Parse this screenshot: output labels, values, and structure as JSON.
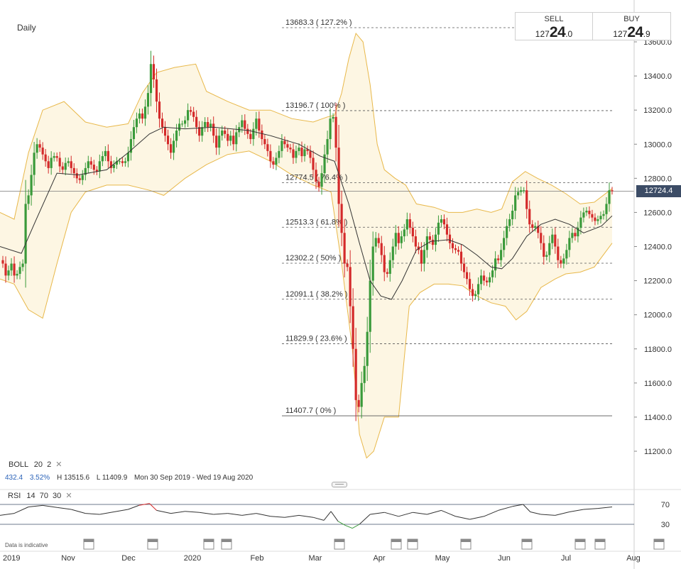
{
  "timeframe": "Daily",
  "quote": {
    "sell_label": "SELL",
    "sell_prefix": "127",
    "sell_big": "24",
    "sell_small": ".0",
    "buy_label": "BUY",
    "buy_prefix": "127",
    "buy_big": "24",
    "buy_small": ".9"
  },
  "current_price_label": "12724.4",
  "boll": {
    "name": "BOLL",
    "period": "20",
    "mult": "2"
  },
  "boll_stats": {
    "change": "432.4",
    "pct": "3.52%",
    "high": "H 13515.6",
    "low": "L 11409.9",
    "range": "Mon 30 Sep 2019 - Wed 19 Aug 2020"
  },
  "rsi": {
    "name": "RSI",
    "period": "14",
    "upper": "70",
    "lower": "30"
  },
  "disclaimer": "Data is indicative",
  "colors": {
    "up": "#3a9a3a",
    "down": "#d42a2a",
    "band": "#e8b84a",
    "band_fill": "#fdf6e3",
    "sma": "#333333",
    "current": "#3c4c66"
  },
  "chart_data": {
    "type": "candlestick",
    "y_axis": {
      "ylim": [
        11100,
        13700
      ],
      "ticks": [
        "11200.0",
        "11400.0",
        "11600.0",
        "11800.0",
        "12000.0",
        "12200.0",
        "12400.0",
        "12600.0",
        "12800.0",
        "13000.0",
        "13200.0",
        "13400.0",
        "13600.0"
      ]
    },
    "x_axis": {
      "labels": [
        "2019",
        "Nov",
        "Dec",
        "2020",
        "Feb",
        "Mar",
        "Apr",
        "May",
        "Jun",
        "Jul",
        "Aug"
      ]
    },
    "fib_levels": [
      {
        "value": 13683.3,
        "label": "13683.3 ( 127.2% )"
      },
      {
        "value": 13196.7,
        "label": "13196.7 ( 100% )"
      },
      {
        "value": 12774.5,
        "label": "12774.5 ( 76.4% )"
      },
      {
        "value": 12513.3,
        "label": "12513.3 ( 61.8% )"
      },
      {
        "value": 12302.2,
        "label": "12302.2 ( 50% )"
      },
      {
        "value": 12091.1,
        "label": "12091.1 ( 38.2% )"
      },
      {
        "value": 11829.9,
        "label": "11829.9 ( 23.6% )"
      },
      {
        "value": 11407.7,
        "label": "11407.7 ( 0% )"
      }
    ],
    "current_price": 12724.4,
    "close_points": [
      [
        0,
        12320
      ],
      [
        4,
        12300
      ],
      [
        8,
        12230
      ],
      [
        12,
        12260
      ],
      [
        16,
        12300
      ],
      [
        20,
        12230
      ],
      [
        24,
        12240
      ],
      [
        28,
        12280
      ],
      [
        32,
        12300
      ],
      [
        36,
        12650
      ],
      [
        40,
        12700
      ],
      [
        44,
        12820
      ],
      [
        48,
        12950
      ],
      [
        52,
        13000
      ],
      [
        56,
        12980
      ],
      [
        60,
        12940
      ],
      [
        64,
        12900
      ],
      [
        68,
        12860
      ],
      [
        72,
        12920
      ],
      [
        76,
        12930
      ],
      [
        80,
        12920
      ],
      [
        84,
        12870
      ],
      [
        88,
        12850
      ],
      [
        92,
        12890
      ],
      [
        96,
        12900
      ],
      [
        100,
        12860
      ],
      [
        104,
        12830
      ],
      [
        108,
        12800
      ],
      [
        112,
        12790
      ],
      [
        116,
        12820
      ],
      [
        120,
        12860
      ],
      [
        124,
        12900
      ],
      [
        128,
        12880
      ],
      [
        132,
        12850
      ],
      [
        136,
        12840
      ],
      [
        140,
        12900
      ],
      [
        144,
        12930
      ],
      [
        148,
        12960
      ],
      [
        152,
        12900
      ],
      [
        156,
        12860
      ],
      [
        160,
        12880
      ],
      [
        164,
        12900
      ],
      [
        168,
        12900
      ],
      [
        172,
        12890
      ],
      [
        176,
        12900
      ],
      [
        180,
        12950
      ],
      [
        184,
        13030
      ],
      [
        188,
        13100
      ],
      [
        192,
        13150
      ],
      [
        196,
        13180
      ],
      [
        200,
        13150
      ],
      [
        204,
        13220
      ],
      [
        208,
        13300
      ],
      [
        212,
        13470
      ],
      [
        216,
        13380
      ],
      [
        220,
        13250
      ],
      [
        224,
        13150
      ],
      [
        228,
        13100
      ],
      [
        232,
        13050
      ],
      [
        236,
        13000
      ],
      [
        240,
        12950
      ],
      [
        244,
        13020
      ],
      [
        248,
        13080
      ],
      [
        252,
        13120
      ],
      [
        256,
        13120
      ],
      [
        260,
        13140
      ],
      [
        264,
        13200
      ],
      [
        268,
        13190
      ],
      [
        272,
        13160
      ],
      [
        276,
        13100
      ],
      [
        280,
        13050
      ],
      [
        284,
        13100
      ],
      [
        288,
        13130
      ],
      [
        292,
        13100
      ],
      [
        296,
        13120
      ],
      [
        300,
        13050
      ],
      [
        304,
        12980
      ],
      [
        308,
        13050
      ],
      [
        312,
        13080
      ],
      [
        316,
        13060
      ],
      [
        320,
        13020
      ],
      [
        324,
        13050
      ],
      [
        328,
        13000
      ],
      [
        332,
        13070
      ],
      [
        336,
        13100
      ],
      [
        340,
        13140
      ],
      [
        344,
        13090
      ],
      [
        348,
        13060
      ],
      [
        352,
        13030
      ],
      [
        356,
        13090
      ],
      [
        360,
        13150
      ],
      [
        364,
        13080
      ],
      [
        368,
        13030
      ],
      [
        372,
        13000
      ],
      [
        376,
        12960
      ],
      [
        380,
        12900
      ],
      [
        384,
        12880
      ],
      [
        388,
        12920
      ],
      [
        392,
        12960
      ],
      [
        396,
        13020
      ],
      [
        400,
        13000
      ],
      [
        404,
        12980
      ],
      [
        408,
        12970
      ],
      [
        412,
        12920
      ],
      [
        416,
        12960
      ],
      [
        420,
        12980
      ],
      [
        424,
        12930
      ],
      [
        428,
        12970
      ],
      [
        432,
        12960
      ],
      [
        436,
        12920
      ],
      [
        440,
        12850
      ],
      [
        444,
        12780
      ],
      [
        448,
        12750
      ],
      [
        452,
        12830
      ],
      [
        456,
        12940
      ],
      [
        460,
        13030
      ],
      [
        464,
        13150
      ],
      [
        468,
        13160
      ],
      [
        472,
        12980
      ],
      [
        476,
        12650
      ],
      [
        480,
        12480
      ],
      [
        484,
        12300
      ],
      [
        488,
        12280
      ],
      [
        492,
        12050
      ],
      [
        496,
        11800
      ],
      [
        500,
        11500
      ],
      [
        504,
        11460
      ],
      [
        508,
        11600
      ],
      [
        512,
        11700
      ],
      [
        516,
        11900
      ],
      [
        520,
        12200
      ],
      [
        524,
        12400
      ],
      [
        528,
        12450
      ],
      [
        532,
        12420
      ],
      [
        536,
        12350
      ],
      [
        540,
        12250
      ],
      [
        544,
        12240
      ],
      [
        548,
        12320
      ],
      [
        552,
        12400
      ],
      [
        556,
        12480
      ],
      [
        560,
        12420
      ],
      [
        564,
        12460
      ],
      [
        568,
        12500
      ],
      [
        572,
        12560
      ],
      [
        576,
        12510
      ],
      [
        580,
        12460
      ],
      [
        584,
        12400
      ],
      [
        588,
        12380
      ],
      [
        592,
        12300
      ],
      [
        596,
        12380
      ],
      [
        600,
        12460
      ],
      [
        604,
        12440
      ],
      [
        608,
        12410
      ],
      [
        612,
        12470
      ],
      [
        616,
        12540
      ],
      [
        620,
        12560
      ],
      [
        624,
        12530
      ],
      [
        628,
        12470
      ],
      [
        632,
        12420
      ],
      [
        636,
        12390
      ],
      [
        640,
        12380
      ],
      [
        644,
        12370
      ],
      [
        648,
        12300
      ],
      [
        652,
        12250
      ],
      [
        656,
        12210
      ],
      [
        660,
        12150
      ],
      [
        664,
        12110
      ],
      [
        668,
        12120
      ],
      [
        672,
        12180
      ],
      [
        676,
        12230
      ],
      [
        680,
        12200
      ],
      [
        684,
        12190
      ],
      [
        688,
        12220
      ],
      [
        692,
        12260
      ],
      [
        696,
        12330
      ],
      [
        700,
        12320
      ],
      [
        704,
        12380
      ],
      [
        708,
        12450
      ],
      [
        712,
        12520
      ],
      [
        716,
        12560
      ],
      [
        720,
        12610
      ],
      [
        724,
        12700
      ],
      [
        728,
        12720
      ],
      [
        732,
        12730
      ],
      [
        736,
        12730
      ],
      [
        740,
        12620
      ],
      [
        744,
        12530
      ],
      [
        748,
        12510
      ],
      [
        752,
        12520
      ],
      [
        756,
        12480
      ],
      [
        760,
        12420
      ],
      [
        764,
        12340
      ],
      [
        768,
        12350
      ],
      [
        772,
        12420
      ],
      [
        776,
        12470
      ],
      [
        780,
        12400
      ],
      [
        784,
        12320
      ],
      [
        788,
        12300
      ],
      [
        792,
        12330
      ],
      [
        796,
        12380
      ],
      [
        800,
        12450
      ],
      [
        804,
        12480
      ],
      [
        808,
        12460
      ],
      [
        812,
        12510
      ],
      [
        816,
        12570
      ],
      [
        820,
        12600
      ],
      [
        824,
        12610
      ],
      [
        828,
        12590
      ],
      [
        832,
        12570
      ],
      [
        836,
        12550
      ],
      [
        840,
        12560
      ],
      [
        844,
        12580
      ],
      [
        848,
        12590
      ],
      [
        852,
        12650
      ],
      [
        856,
        12730
      ],
      [
        860,
        12725
      ]
    ],
    "sma_points": [
      [
        0,
        12400
      ],
      [
        30,
        12360
      ],
      [
        50,
        12550
      ],
      [
        80,
        12830
      ],
      [
        110,
        12820
      ],
      [
        150,
        12850
      ],
      [
        180,
        12950
      ],
      [
        210,
        13060
      ],
      [
        230,
        13100
      ],
      [
        260,
        13090
      ],
      [
        300,
        13100
      ],
      [
        350,
        13080
      ],
      [
        380,
        13050
      ],
      [
        420,
        13000
      ],
      [
        450,
        12930
      ],
      [
        470,
        12900
      ],
      [
        490,
        12650
      ],
      [
        505,
        12420
      ],
      [
        520,
        12200
      ],
      [
        535,
        12110
      ],
      [
        550,
        12090
      ],
      [
        565,
        12200
      ],
      [
        585,
        12380
      ],
      [
        605,
        12430
      ],
      [
        630,
        12440
      ],
      [
        650,
        12410
      ],
      [
        670,
        12350
      ],
      [
        690,
        12280
      ],
      [
        705,
        12270
      ],
      [
        720,
        12330
      ],
      [
        740,
        12460
      ],
      [
        760,
        12530
      ],
      [
        780,
        12560
      ],
      [
        800,
        12530
      ],
      [
        820,
        12480
      ],
      [
        845,
        12520
      ],
      [
        860,
        12580
      ]
    ],
    "band_upper_points": [
      [
        0,
        12600
      ],
      [
        20,
        12560
      ],
      [
        40,
        12950
      ],
      [
        60,
        13200
      ],
      [
        90,
        13250
      ],
      [
        120,
        13130
      ],
      [
        150,
        13100
      ],
      [
        180,
        13120
      ],
      [
        200,
        13300
      ],
      [
        220,
        13420
      ],
      [
        245,
        13450
      ],
      [
        275,
        13470
      ],
      [
        290,
        13310
      ],
      [
        320,
        13250
      ],
      [
        350,
        13200
      ],
      [
        380,
        13200
      ],
      [
        410,
        13150
      ],
      [
        440,
        13130
      ],
      [
        460,
        13160
      ],
      [
        470,
        13170
      ],
      [
        480,
        13300
      ],
      [
        490,
        13500
      ],
      [
        500,
        13650
      ],
      [
        510,
        13600
      ],
      [
        520,
        13350
      ],
      [
        530,
        13000
      ],
      [
        540,
        12850
      ],
      [
        555,
        12800
      ],
      [
        570,
        12760
      ],
      [
        585,
        12650
      ],
      [
        610,
        12630
      ],
      [
        630,
        12600
      ],
      [
        650,
        12600
      ],
      [
        670,
        12620
      ],
      [
        690,
        12600
      ],
      [
        705,
        12620
      ],
      [
        720,
        12780
      ],
      [
        738,
        12840
      ],
      [
        755,
        12800
      ],
      [
        775,
        12760
      ],
      [
        795,
        12710
      ],
      [
        815,
        12650
      ],
      [
        835,
        12660
      ],
      [
        860,
        12740
      ]
    ],
    "band_lower_points": [
      [
        0,
        12210
      ],
      [
        20,
        12180
      ],
      [
        40,
        12030
      ],
      [
        60,
        11980
      ],
      [
        80,
        12300
      ],
      [
        100,
        12600
      ],
      [
        120,
        12720
      ],
      [
        150,
        12760
      ],
      [
        180,
        12760
      ],
      [
        210,
        12730
      ],
      [
        230,
        12700
      ],
      [
        260,
        12800
      ],
      [
        290,
        12880
      ],
      [
        320,
        12940
      ],
      [
        350,
        12960
      ],
      [
        380,
        12900
      ],
      [
        410,
        12820
      ],
      [
        440,
        12760
      ],
      [
        465,
        12720
      ],
      [
        480,
        12300
      ],
      [
        495,
        11800
      ],
      [
        505,
        11300
      ],
      [
        515,
        11160
      ],
      [
        525,
        11200
      ],
      [
        540,
        11400
      ],
      [
        560,
        11400
      ],
      [
        575,
        12050
      ],
      [
        590,
        12130
      ],
      [
        610,
        12180
      ],
      [
        630,
        12180
      ],
      [
        650,
        12170
      ],
      [
        670,
        12110
      ],
      [
        690,
        12070
      ],
      [
        710,
        12050
      ],
      [
        725,
        11970
      ],
      [
        740,
        12020
      ],
      [
        760,
        12160
      ],
      [
        780,
        12210
      ],
      [
        795,
        12240
      ],
      [
        815,
        12250
      ],
      [
        835,
        12280
      ],
      [
        860,
        12420
      ]
    ],
    "rsi_upper": 70,
    "rsi_lower": 30,
    "rsi_points": [
      [
        0,
        48
      ],
      [
        20,
        52
      ],
      [
        40,
        65
      ],
      [
        60,
        68
      ],
      [
        80,
        64
      ],
      [
        100,
        60
      ],
      [
        120,
        52
      ],
      [
        140,
        50
      ],
      [
        160,
        55
      ],
      [
        180,
        60
      ],
      [
        195,
        68
      ],
      [
        210,
        72
      ],
      [
        220,
        58
      ],
      [
        240,
        52
      ],
      [
        260,
        56
      ],
      [
        280,
        54
      ],
      [
        300,
        50
      ],
      [
        320,
        52
      ],
      [
        340,
        48
      ],
      [
        360,
        52
      ],
      [
        380,
        46
      ],
      [
        400,
        44
      ],
      [
        420,
        48
      ],
      [
        440,
        44
      ],
      [
        455,
        38
      ],
      [
        465,
        56
      ],
      [
        475,
        36
      ],
      [
        485,
        28
      ],
      [
        495,
        22
      ],
      [
        505,
        30
      ],
      [
        520,
        50
      ],
      [
        540,
        54
      ],
      [
        560,
        46
      ],
      [
        580,
        54
      ],
      [
        600,
        50
      ],
      [
        620,
        58
      ],
      [
        640,
        46
      ],
      [
        660,
        40
      ],
      [
        680,
        46
      ],
      [
        700,
        58
      ],
      [
        720,
        66
      ],
      [
        735,
        70
      ],
      [
        745,
        55
      ],
      [
        760,
        50
      ],
      [
        780,
        48
      ],
      [
        800,
        55
      ],
      [
        820,
        60
      ],
      [
        840,
        62
      ],
      [
        860,
        65
      ]
    ]
  }
}
